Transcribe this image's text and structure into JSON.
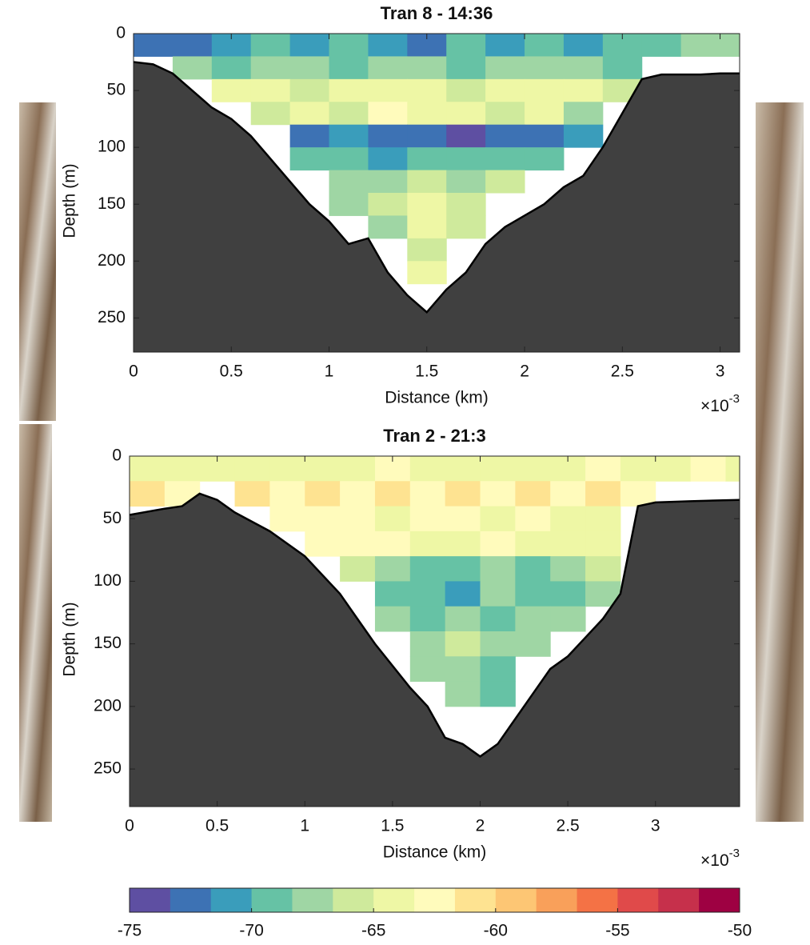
{
  "chart_data": [
    {
      "type": "heatmap",
      "title": "Tran 8 - 14:36",
      "xlabel": "Distance (km)",
      "ylabel": "Depth (m)",
      "x_multiplier": {
        "base": "×10",
        "exponent": "-3"
      },
      "xlim": [
        0,
        3.1
      ],
      "xticks": [
        0,
        0.5,
        1,
        1.5,
        2,
        2.5,
        3
      ],
      "ylim": [
        0,
        280
      ],
      "yticks": [
        0,
        50,
        100,
        150,
        200,
        250
      ],
      "y_reversed": true,
      "x_edges": [
        0,
        0.2,
        0.4,
        0.6,
        0.8,
        1.0,
        1.2,
        1.4,
        1.6,
        1.8,
        2.0,
        2.2,
        2.4,
        2.6,
        2.8,
        3.0,
        3.1
      ],
      "y_edges": [
        0,
        20,
        40,
        60,
        80,
        100,
        120,
        140,
        160,
        180,
        200,
        220
      ],
      "z": [
        [
          -73,
          -72,
          -71,
          -70,
          -71,
          -70,
          -71,
          -72,
          -70,
          -71,
          -70,
          -71,
          -70,
          -69,
          -68,
          -67
        ],
        [
          null,
          -68,
          -69,
          -67,
          -68,
          -69,
          -67,
          -68,
          -69,
          -68,
          -67,
          -68,
          -69,
          null,
          null,
          null
        ],
        [
          null,
          null,
          -65,
          -64,
          -66,
          -65,
          -64,
          -65,
          -66,
          -65,
          -64,
          -65,
          -66,
          null,
          null,
          null
        ],
        [
          null,
          null,
          null,
          -66,
          -64,
          -66,
          -63,
          -65,
          -64,
          -66,
          -65,
          -67,
          null,
          null,
          null,
          null
        ],
        [
          null,
          null,
          null,
          null,
          -72,
          -71,
          -73,
          -72,
          -74,
          -73,
          -72,
          -71,
          null,
          null,
          null,
          null
        ],
        [
          null,
          null,
          null,
          null,
          -70,
          -69,
          -71,
          -70,
          -70,
          -69,
          -70,
          null,
          null,
          null,
          null,
          null
        ],
        [
          null,
          null,
          null,
          null,
          null,
          -68,
          -67,
          -66,
          -67,
          -66,
          null,
          null,
          null,
          null,
          null,
          null
        ],
        [
          null,
          null,
          null,
          null,
          null,
          -67,
          -66,
          -65,
          -66,
          null,
          null,
          null,
          null,
          null,
          null,
          null
        ],
        [
          null,
          null,
          null,
          null,
          null,
          null,
          -67,
          -65,
          -66,
          null,
          null,
          null,
          null,
          null,
          null,
          null
        ],
        [
          null,
          null,
          null,
          null,
          null,
          null,
          null,
          -66,
          null,
          null,
          null,
          null,
          null,
          null,
          null,
          null
        ],
        [
          null,
          null,
          null,
          null,
          null,
          null,
          null,
          -65,
          null,
          null,
          null,
          null,
          null,
          null,
          null,
          null
        ]
      ],
      "seafloor": {
        "color": "#404040",
        "x": [
          0,
          0.1,
          0.2,
          0.3,
          0.4,
          0.5,
          0.6,
          0.7,
          0.8,
          0.9,
          1.0,
          1.1,
          1.2,
          1.3,
          1.4,
          1.5,
          1.6,
          1.7,
          1.8,
          1.9,
          2.0,
          2.1,
          2.2,
          2.3,
          2.4,
          2.5,
          2.6,
          2.7,
          2.8,
          2.9,
          3.0,
          3.1
        ],
        "depth": [
          25,
          27,
          35,
          50,
          65,
          75,
          90,
          110,
          130,
          150,
          165,
          185,
          180,
          210,
          230,
          245,
          225,
          210,
          185,
          170,
          160,
          150,
          135,
          125,
          100,
          70,
          40,
          36,
          36,
          36,
          35,
          35
        ]
      }
    },
    {
      "type": "heatmap",
      "title": "Tran 2 - 21:3",
      "xlabel": "Distance (km)",
      "ylabel": "Depth (m)",
      "x_multiplier": {
        "base": "×10",
        "exponent": "-3"
      },
      "xlim": [
        0,
        3.48
      ],
      "xticks": [
        0,
        0.5,
        1,
        1.5,
        2,
        2.5,
        3
      ],
      "ylim": [
        0,
        280
      ],
      "yticks": [
        0,
        50,
        100,
        150,
        200,
        250
      ],
      "y_reversed": true,
      "x_edges": [
        0,
        0.2,
        0.4,
        0.6,
        0.8,
        1.0,
        1.2,
        1.4,
        1.6,
        1.8,
        2.0,
        2.2,
        2.4,
        2.6,
        2.8,
        3.0,
        3.2,
        3.4,
        3.48
      ],
      "y_edges": [
        0,
        20,
        40,
        60,
        80,
        100,
        120,
        140,
        160,
        180,
        200
      ],
      "z": [
        [
          -65,
          -64,
          -65,
          -64,
          -64,
          -65,
          -64,
          -63,
          -64,
          -64,
          -65,
          -64,
          -64,
          -63,
          -64,
          -64,
          -63,
          -64
        ],
        [
          -61,
          -62,
          null,
          -61,
          -62,
          -61,
          -62,
          -61,
          -62,
          -61,
          -62,
          -61,
          -62,
          -61,
          -62,
          null,
          null,
          null
        ],
        [
          null,
          null,
          null,
          null,
          -63,
          -62,
          -63,
          -64,
          -63,
          -63,
          -64,
          -63,
          -64,
          -64,
          null,
          null,
          null,
          null
        ],
        [
          null,
          null,
          null,
          null,
          null,
          -62,
          -63,
          -63,
          -64,
          -64,
          -63,
          -64,
          -64,
          -65,
          null,
          null,
          null,
          null
        ],
        [
          null,
          null,
          null,
          null,
          null,
          null,
          -66,
          -68,
          -69,
          -70,
          -68,
          -69,
          -67,
          -66,
          null,
          null,
          null,
          null
        ],
        [
          null,
          null,
          null,
          null,
          null,
          null,
          null,
          -70,
          -69,
          -71,
          -68,
          -70,
          -69,
          -67,
          null,
          null,
          null,
          null
        ],
        [
          null,
          null,
          null,
          null,
          null,
          null,
          null,
          -68,
          -70,
          -67,
          -69,
          -68,
          -68,
          null,
          null,
          null,
          null,
          null
        ],
        [
          null,
          null,
          null,
          null,
          null,
          null,
          null,
          null,
          -67,
          -66,
          -68,
          -67,
          null,
          null,
          null,
          null,
          null,
          null
        ],
        [
          null,
          null,
          null,
          null,
          null,
          null,
          null,
          null,
          -68,
          -67,
          -69,
          null,
          null,
          null,
          null,
          null,
          null,
          null
        ],
        [
          null,
          null,
          null,
          null,
          null,
          null,
          null,
          null,
          null,
          -68,
          -69,
          null,
          null,
          null,
          null,
          null,
          null,
          null
        ]
      ],
      "seafloor": {
        "color": "#404040",
        "x": [
          0,
          0.2,
          0.3,
          0.4,
          0.5,
          0.6,
          0.8,
          1.0,
          1.2,
          1.3,
          1.4,
          1.6,
          1.7,
          1.8,
          1.9,
          2.0,
          2.1,
          2.2,
          2.3,
          2.4,
          2.5,
          2.6,
          2.7,
          2.8,
          2.9,
          3.0,
          3.2,
          3.48
        ],
        "depth": [
          47,
          42,
          40,
          30,
          35,
          45,
          60,
          80,
          110,
          130,
          150,
          185,
          200,
          225,
          230,
          240,
          230,
          210,
          190,
          170,
          160,
          145,
          130,
          110,
          40,
          37,
          36,
          35
        ]
      }
    },
    {
      "type": "colorbar",
      "clim": [
        -75,
        -50
      ],
      "ticks": [
        -75,
        -70,
        -65,
        -60,
        -55,
        -50
      ],
      "colors": [
        "#5e4fa2",
        "#3d72b4",
        "#3a9dbb",
        "#66c2a5",
        "#9fd6a4",
        "#cfea9c",
        "#eef7a5",
        "#fffbbc",
        "#fee391",
        "#fdc674",
        "#f9a05a",
        "#f47245",
        "#e04a4a",
        "#c6304b",
        "#9e0142"
      ]
    }
  ]
}
